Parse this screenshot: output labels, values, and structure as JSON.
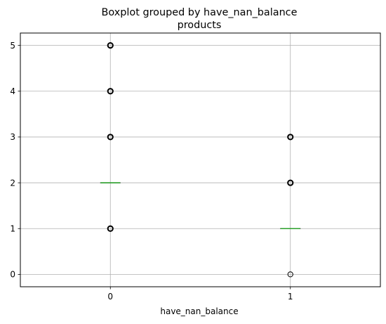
{
  "colors": {
    "background": "#ffffff",
    "grid": "#b0b0b0",
    "axes": "#000000",
    "median": "#2ca02c",
    "flier": "#000000"
  },
  "chart_data": {
    "type": "boxplot",
    "title": "Boxplot grouped by have_nan_balance",
    "subtitle": "products",
    "xlabel": "have_nan_balance",
    "ylabel": "",
    "categories": [
      "0",
      "1"
    ],
    "ylim": [
      -0.27,
      5.27
    ],
    "yticks": [
      "0",
      "1",
      "2",
      "3",
      "4",
      "5"
    ],
    "grid": true,
    "boxes": [
      {
        "category": "0",
        "median": 2,
        "q1": 2,
        "q3": 2,
        "whisker_low": 2,
        "whisker_high": 2,
        "fliers": [
          1,
          3,
          4,
          5
        ]
      },
      {
        "category": "1",
        "median": 1,
        "q1": 1,
        "q3": 1,
        "whisker_low": 1,
        "whisker_high": 1,
        "fliers": [
          0,
          2,
          3
        ]
      }
    ]
  }
}
